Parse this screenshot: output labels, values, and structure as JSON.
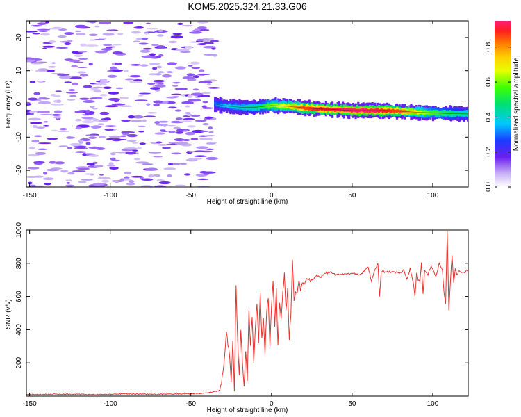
{
  "title": "KOM5.2025.324.21.33.G06",
  "chart_data": [
    {
      "type": "heatmap",
      "title": "KOM5.2025.324.21.33.G06",
      "xlabel": "Height of straight line (km)",
      "ylabel": "Frequency (Hz)",
      "xlim": [
        -152,
        122
      ],
      "ylim": [
        -25,
        25
      ],
      "xticks": [
        -150,
        -100,
        -50,
        0,
        50,
        100
      ],
      "yticks": [
        -20,
        -10,
        0,
        10,
        20
      ],
      "colorbar": {
        "label": "Normalized spectral amplitude",
        "range": [
          0,
          0.95
        ],
        "ticks": [
          0.0,
          0.2,
          0.4,
          0.6,
          0.8
        ]
      },
      "ridge": {
        "x": [
          -35,
          -30,
          -20,
          -10,
          0,
          10,
          20,
          30,
          40,
          50,
          60,
          70,
          80,
          90,
          100,
          110,
          122
        ],
        "freq": [
          0.0,
          -0.5,
          -1.0,
          -1.0,
          -0.5,
          -0.7,
          -1.2,
          -1.5,
          -1.7,
          -2.0,
          -2.0,
          -2.0,
          -2.2,
          -2.5,
          -2.7,
          -2.9,
          -3.0
        ],
        "amplitude": [
          0.3,
          0.35,
          0.4,
          0.45,
          0.6,
          0.7,
          0.85,
          0.9,
          0.92,
          0.95,
          0.95,
          0.9,
          0.85,
          0.7,
          0.55,
          0.5,
          0.45
        ]
      },
      "noise_region_x": [
        -152,
        -35
      ]
    },
    {
      "type": "line",
      "xlabel": "Height of straight line (km)",
      "ylabel": "SNR (v/v)",
      "xlim": [
        -152,
        122
      ],
      "ylim": [
        0,
        1000
      ],
      "xticks": [
        -150,
        -100,
        -50,
        0,
        50,
        100
      ],
      "yticks": [
        200,
        400,
        600,
        800,
        1000
      ],
      "color": "#e8322e",
      "x": [
        -152,
        -130,
        -110,
        -90,
        -70,
        -50,
        -40,
        -32,
        -30,
        -28,
        -26,
        -25,
        -24,
        -23,
        -22,
        -21,
        -20,
        -19,
        -18,
        -17,
        -16,
        -15,
        -14,
        -13,
        -12,
        -11,
        -10,
        -9,
        -8,
        -7,
        -6,
        -5,
        -4,
        -3,
        -2,
        -1,
        0,
        1,
        2,
        3,
        4,
        5,
        6,
        7,
        8,
        9,
        10,
        11,
        12,
        13,
        14,
        15,
        16,
        17,
        18,
        19,
        20,
        22,
        24,
        26,
        28,
        30,
        33,
        36,
        40,
        45,
        50,
        55,
        60,
        62,
        64,
        66,
        67,
        68,
        69,
        70,
        75,
        80,
        82,
        84,
        86,
        88,
        89,
        90,
        91,
        92,
        93,
        94,
        95,
        97,
        99,
        100,
        102,
        104,
        106,
        107,
        108,
        109,
        110,
        111,
        112,
        113,
        114,
        115,
        116,
        118,
        120,
        122
      ],
      "y": [
        10,
        12,
        9,
        14,
        11,
        15,
        18,
        35,
        140,
        380,
        250,
        90,
        340,
        30,
        680,
        330,
        120,
        400,
        200,
        60,
        280,
        100,
        520,
        310,
        480,
        200,
        420,
        560,
        330,
        620,
        340,
        480,
        250,
        520,
        600,
        310,
        540,
        690,
        420,
        640,
        310,
        560,
        460,
        620,
        740,
        510,
        640,
        330,
        500,
        810,
        580,
        640,
        620,
        700,
        640,
        690,
        670,
        720,
        690,
        700,
        730,
        710,
        740,
        745,
        730,
        735,
        740,
        730,
        780,
        690,
        760,
        800,
        600,
        740,
        760,
        745,
        750,
        740,
        760,
        700,
        770,
        680,
        600,
        740,
        700,
        690,
        800,
        620,
        760,
        730,
        780,
        760,
        720,
        800,
        760,
        620,
        560,
        1000,
        520,
        700,
        850,
        680,
        770,
        730,
        750,
        745,
        750,
        760
      ]
    }
  ]
}
